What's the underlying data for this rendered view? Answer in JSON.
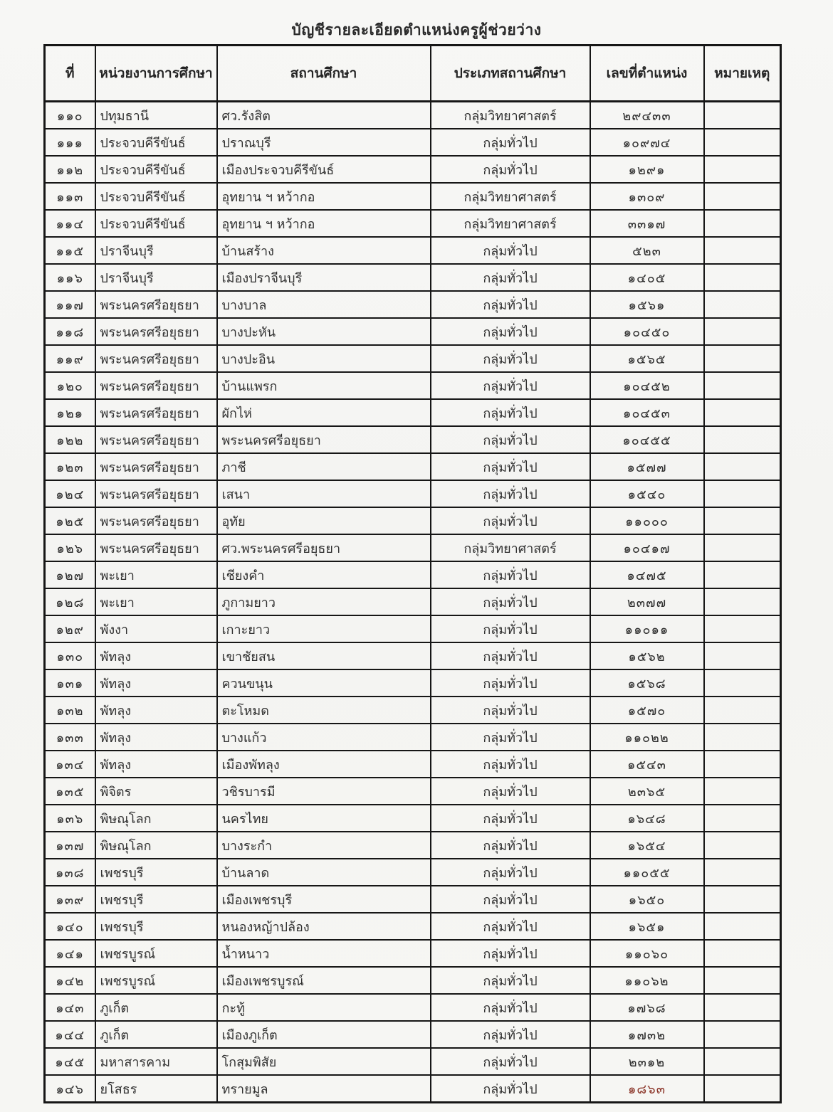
{
  "title": "บัญชีรายละเอียดตำแหน่งครูผู้ช่วยว่าง",
  "table": {
    "columns": [
      "ที่",
      "หน่วยงานการศึกษา",
      "สถานศึกษา",
      "ประเภทสถานศึกษา",
      "เลขที่ตำแหน่ง",
      "หมายเหตุ"
    ],
    "type_values": {
      "science": "กลุ่มวิทยาศาสตร์",
      "general": "กลุ่มทั่วไป"
    },
    "rows": [
      {
        "no": "๑๑๐",
        "unit": "ปทุมธานี",
        "school": "ศว.รังสิต",
        "type": "กลุ่มวิทยาศาสตร์",
        "position_no": "๒๙๔๓๓",
        "note": ""
      },
      {
        "no": "๑๑๑",
        "unit": "ประจวบคีรีขันธ์",
        "school": "ปราณบุรี",
        "type": "กลุ่มทั่วไป",
        "position_no": "๑๐๙๗๔",
        "note": ""
      },
      {
        "no": "๑๑๒",
        "unit": "ประจวบคีรีขันธ์",
        "school": "เมืองประจวบคีรีขันธ์",
        "type": "กลุ่มทั่วไป",
        "position_no": "๑๒๙๑",
        "note": ""
      },
      {
        "no": "๑๑๓",
        "unit": "ประจวบคีรีขันธ์",
        "school": "อุทยาน ฯ หว้ากอ",
        "type": "กลุ่มวิทยาศาสตร์",
        "position_no": "๑๓๐๙",
        "note": ""
      },
      {
        "no": "๑๑๔",
        "unit": "ประจวบคีรีขันธ์",
        "school": "อุทยาน ฯ หว้ากอ",
        "type": "กลุ่มวิทยาศาสตร์",
        "position_no": "๓๓๑๗",
        "note": ""
      },
      {
        "no": "๑๑๕",
        "unit": "ปราจีนบุรี",
        "school": "บ้านสร้าง",
        "type": "กลุ่มทั่วไป",
        "position_no": "๕๒๓",
        "note": ""
      },
      {
        "no": "๑๑๖",
        "unit": "ปราจีนบุรี",
        "school": "เมืองปราจีนบุรี",
        "type": "กลุ่มทั่วไป",
        "position_no": "๑๔๐๕",
        "note": ""
      },
      {
        "no": "๑๑๗",
        "unit": "พระนครศรีอยุธยา",
        "school": "บางบาล",
        "type": "กลุ่มทั่วไป",
        "position_no": "๑๕๖๑",
        "note": ""
      },
      {
        "no": "๑๑๘",
        "unit": "พระนครศรีอยุธยา",
        "school": "บางปะหัน",
        "type": "กลุ่มทั่วไป",
        "position_no": "๑๐๔๕๐",
        "note": ""
      },
      {
        "no": "๑๑๙",
        "unit": "พระนครศรีอยุธยา",
        "school": "บางปะอิน",
        "type": "กลุ่มทั่วไป",
        "position_no": "๑๕๖๕",
        "note": ""
      },
      {
        "no": "๑๒๐",
        "unit": "พระนครศรีอยุธยา",
        "school": "บ้านแพรก",
        "type": "กลุ่มทั่วไป",
        "position_no": "๑๐๔๕๒",
        "note": ""
      },
      {
        "no": "๑๒๑",
        "unit": "พระนครศรีอยุธยา",
        "school": "ผักไห่",
        "type": "กลุ่มทั่วไป",
        "position_no": "๑๐๔๕๓",
        "note": ""
      },
      {
        "no": "๑๒๒",
        "unit": "พระนครศรีอยุธยา",
        "school": "พระนครศรีอยุธยา",
        "type": "กลุ่มทั่วไป",
        "position_no": "๑๐๔๕๕",
        "note": ""
      },
      {
        "no": "๑๒๓",
        "unit": "พระนครศรีอยุธยา",
        "school": "ภาชี",
        "type": "กลุ่มทั่วไป",
        "position_no": "๑๕๗๗",
        "note": ""
      },
      {
        "no": "๑๒๔",
        "unit": "พระนครศรีอยุธยา",
        "school": "เสนา",
        "type": "กลุ่มทั่วไป",
        "position_no": "๑๕๔๐",
        "note": ""
      },
      {
        "no": "๑๒๕",
        "unit": "พระนครศรีอยุธยา",
        "school": "อุทัย",
        "type": "กลุ่มทั่วไป",
        "position_no": "๑๑๐๐๐",
        "note": ""
      },
      {
        "no": "๑๒๖",
        "unit": "พระนครศรีอยุธยา",
        "school": "ศว.พระนครศรีอยุธยา",
        "type": "กลุ่มวิทยาศาสตร์",
        "position_no": "๑๐๔๑๗",
        "note": ""
      },
      {
        "no": "๑๒๗",
        "unit": "พะเยา",
        "school": "เชียงคำ",
        "type": "กลุ่มทั่วไป",
        "position_no": "๑๔๗๕",
        "note": ""
      },
      {
        "no": "๑๒๘",
        "unit": "พะเยา",
        "school": "ภูกามยาว",
        "type": "กลุ่มทั่วไป",
        "position_no": "๒๓๗๗",
        "note": ""
      },
      {
        "no": "๑๒๙",
        "unit": "พังงา",
        "school": "เกาะยาว",
        "type": "กลุ่มทั่วไป",
        "position_no": "๑๑๐๑๑",
        "note": ""
      },
      {
        "no": "๑๓๐",
        "unit": "พัทลุง",
        "school": "เขาชัยสน",
        "type": "กลุ่มทั่วไป",
        "position_no": "๑๕๖๒",
        "note": ""
      },
      {
        "no": "๑๓๑",
        "unit": "พัทลุง",
        "school": "ควนขนุน",
        "type": "กลุ่มทั่วไป",
        "position_no": "๑๕๖๘",
        "note": ""
      },
      {
        "no": "๑๓๒",
        "unit": "พัทลุง",
        "school": "ตะโหมด",
        "type": "กลุ่มทั่วไป",
        "position_no": "๑๕๗๐",
        "note": ""
      },
      {
        "no": "๑๓๓",
        "unit": "พัทลุง",
        "school": "บางแก้ว",
        "type": "กลุ่มทั่วไป",
        "position_no": "๑๑๐๒๒",
        "note": ""
      },
      {
        "no": "๑๓๔",
        "unit": "พัทลุง",
        "school": "เมืองพัทลุง",
        "type": "กลุ่มทั่วไป",
        "position_no": "๑๕๔๓",
        "note": ""
      },
      {
        "no": "๑๓๕",
        "unit": "พิจิตร",
        "school": "วชิรบารมี",
        "type": "กลุ่มทั่วไป",
        "position_no": "๒๓๖๕",
        "note": ""
      },
      {
        "no": "๑๓๖",
        "unit": "พิษณุโลก",
        "school": "นครไทย",
        "type": "กลุ่มทั่วไป",
        "position_no": "๑๖๔๘",
        "note": ""
      },
      {
        "no": "๑๓๗",
        "unit": "พิษณุโลก",
        "school": "บางระกำ",
        "type": "กลุ่มทั่วไป",
        "position_no": "๑๖๕๔",
        "note": ""
      },
      {
        "no": "๑๓๘",
        "unit": "เพชรบุรี",
        "school": "บ้านลาด",
        "type": "กลุ่มทั่วไป",
        "position_no": "๑๑๐๕๕",
        "note": ""
      },
      {
        "no": "๑๓๙",
        "unit": "เพชรบุรี",
        "school": "เมืองเพชรบุรี",
        "type": "กลุ่มทั่วไป",
        "position_no": "๑๖๕๐",
        "note": ""
      },
      {
        "no": "๑๔๐",
        "unit": "เพชรบุรี",
        "school": "หนองหญ้าปล้อง",
        "type": "กลุ่มทั่วไป",
        "position_no": "๑๖๕๑",
        "note": ""
      },
      {
        "no": "๑๔๑",
        "unit": "เพชรบูรณ์",
        "school": "น้ำหนาว",
        "type": "กลุ่มทั่วไป",
        "position_no": "๑๑๐๖๐",
        "note": ""
      },
      {
        "no": "๑๔๒",
        "unit": "เพชรบูรณ์",
        "school": "เมืองเพชรบูรณ์",
        "type": "กลุ่มทั่วไป",
        "position_no": "๑๑๐๖๒",
        "note": ""
      },
      {
        "no": "๑๔๓",
        "unit": "ภูเก็ต",
        "school": "กะทู้",
        "type": "กลุ่มทั่วไป",
        "position_no": "๑๗๖๘",
        "note": ""
      },
      {
        "no": "๑๔๔",
        "unit": "ภูเก็ต",
        "school": "เมืองภูเก็ต",
        "type": "กลุ่มทั่วไป",
        "position_no": "๑๗๓๒",
        "note": ""
      },
      {
        "no": "๑๔๕",
        "unit": "มหาสารคาม",
        "school": "โกสุมพิสัย",
        "type": "กลุ่มทั่วไป",
        "position_no": "๒๓๑๒",
        "note": ""
      },
      {
        "no": "๑๔๖",
        "unit": "ยโสธร",
        "school": "ทรายมูล",
        "type": "กลุ่มทั่วไป",
        "position_no": "๑๘๖๓",
        "position_no_color": "#8e3a2e",
        "note": ""
      }
    ]
  },
  "colors": {
    "page_background": "#f6f6f4",
    "border": "#161616",
    "text": "#303030"
  }
}
